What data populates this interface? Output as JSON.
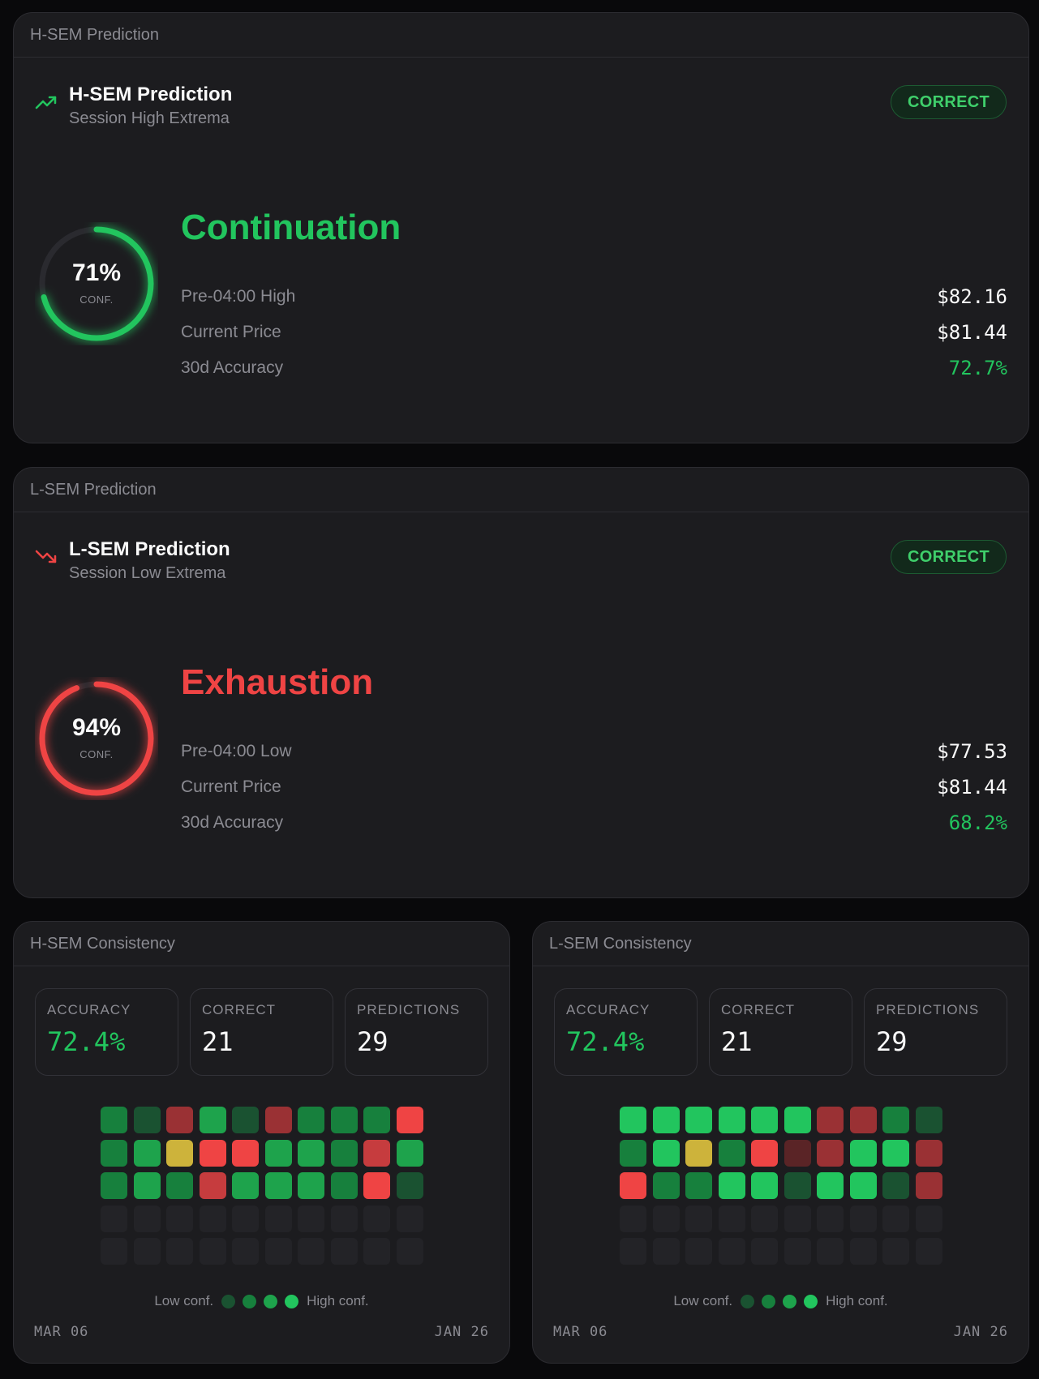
{
  "colors": {
    "green": "#22c55e",
    "red": "#ef4444",
    "muted": "#8b8b92",
    "panel_bg": "#1c1c1f",
    "page_bg": "#09090b",
    "cell_empty": "#232327",
    "cell_yellow": "#cdb33b",
    "cell_green_levels": [
      "#1a5231",
      "#17803d",
      "#1ea34c",
      "#22c55e"
    ],
    "cell_red_levels": [
      "#5a2426",
      "#9a3134",
      "#c63c3e",
      "#ef4444"
    ]
  },
  "predictions": [
    {
      "panel_title": "H-SEM Prediction",
      "title": "H-SEM Prediction",
      "subtitle": "Session High Extrema",
      "icon": "trending-up-icon",
      "badge": "CORRECT",
      "confidence_pct": 71,
      "confidence_text": "71%",
      "conf_label": "CONF.",
      "verdict": "Continuation",
      "verdict_color": "#22c55e",
      "stats": [
        {
          "label": "Pre-04:00 High",
          "value": "$82.16",
          "color": "#fafafa"
        },
        {
          "label": "Current Price",
          "value": "$81.44",
          "color": "#fafafa"
        },
        {
          "label": "30d Accuracy",
          "value": "72.7%",
          "color": "#22c55e"
        }
      ]
    },
    {
      "panel_title": "L-SEM Prediction",
      "title": "L-SEM Prediction",
      "subtitle": "Session Low Extrema",
      "icon": "trending-down-icon",
      "badge": "CORRECT",
      "confidence_pct": 94,
      "confidence_text": "94%",
      "conf_label": "CONF.",
      "verdict": "Exhaustion",
      "verdict_color": "#ef4444",
      "stats": [
        {
          "label": "Pre-04:00 Low",
          "value": "$77.53",
          "color": "#fafafa"
        },
        {
          "label": "Current Price",
          "value": "$81.44",
          "color": "#fafafa"
        },
        {
          "label": "30d Accuracy",
          "value": "68.2%",
          "color": "#22c55e"
        }
      ]
    }
  ],
  "consistency": [
    {
      "panel_title": "H-SEM Consistency",
      "kpis": [
        {
          "label": "ACCURACY",
          "value": "72.4%",
          "color": "#22c55e"
        },
        {
          "label": "CORRECT",
          "value": "21",
          "color": "#fafafa"
        },
        {
          "label": "PREDICTIONS",
          "value": "29",
          "color": "#fafafa"
        }
      ],
      "cells": [
        [
          "g2",
          "g1",
          "r2",
          "g3",
          "g1",
          "r2",
          "g2",
          "g2",
          "g2",
          "r4"
        ],
        [
          "g2",
          "g3",
          "y",
          "r4",
          "r4",
          "g3",
          "g3",
          "g2",
          "r3",
          "g3"
        ],
        [
          "g2",
          "g3",
          "g2",
          "r3",
          "g3",
          "g3",
          "g3",
          "g2",
          "r4",
          "g1"
        ],
        [
          "e",
          "e",
          "e",
          "e",
          "e",
          "e",
          "e",
          "e",
          "e",
          "e"
        ],
        [
          "e",
          "e",
          "e",
          "e",
          "e",
          "e",
          "e",
          "e",
          "e",
          "e"
        ]
      ],
      "legend_low": "Low conf.",
      "legend_high": "High conf.",
      "date_start": "MAR 06",
      "date_end": "JAN 26"
    },
    {
      "panel_title": "L-SEM Consistency",
      "kpis": [
        {
          "label": "ACCURACY",
          "value": "72.4%",
          "color": "#22c55e"
        },
        {
          "label": "CORRECT",
          "value": "21",
          "color": "#fafafa"
        },
        {
          "label": "PREDICTIONS",
          "value": "29",
          "color": "#fafafa"
        }
      ],
      "cells": [
        [
          "g4",
          "g4",
          "g4",
          "g4",
          "g4",
          "g4",
          "r2",
          "r2",
          "g2",
          "g1"
        ],
        [
          "g2",
          "g4",
          "y",
          "g2",
          "r4",
          "r1",
          "r2",
          "g4",
          "g4",
          "r2"
        ],
        [
          "r4",
          "g2",
          "g2",
          "g4",
          "g4",
          "g1",
          "g4",
          "g4",
          "g1",
          "r2"
        ],
        [
          "e",
          "e",
          "e",
          "e",
          "e",
          "e",
          "e",
          "e",
          "e",
          "e"
        ],
        [
          "e",
          "e",
          "e",
          "e",
          "e",
          "e",
          "e",
          "e",
          "e",
          "e"
        ]
      ],
      "legend_low": "Low conf.",
      "legend_high": "High conf.",
      "date_start": "MAR 06",
      "date_end": "JAN 26"
    }
  ]
}
